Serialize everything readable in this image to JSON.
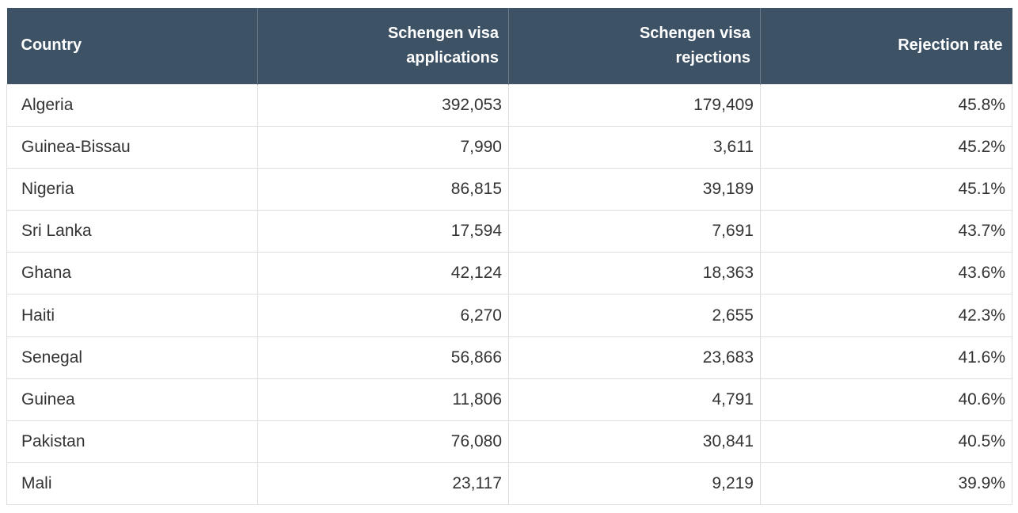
{
  "table": {
    "columns": [
      "Country",
      "Schengen visa applications",
      "Schengen visa rejections",
      "Rejection rate"
    ],
    "rows": [
      [
        "Algeria",
        "392,053",
        "179,409",
        "45.8%"
      ],
      [
        "Guinea-Bissau",
        "7,990",
        "3,611",
        "45.2%"
      ],
      [
        "Nigeria",
        "86,815",
        "39,189",
        "45.1%"
      ],
      [
        "Sri Lanka",
        "17,594",
        "7,691",
        "43.7%"
      ],
      [
        "Ghana",
        "42,124",
        "18,363",
        "43.6%"
      ],
      [
        "Haiti",
        "6,270",
        "2,655",
        "42.3%"
      ],
      [
        "Senegal",
        "56,866",
        "23,683",
        "41.6%"
      ],
      [
        "Guinea",
        "11,806",
        "4,791",
        "40.6%"
      ],
      [
        "Pakistan",
        "76,080",
        "30,841",
        "40.5%"
      ],
      [
        "Mali",
        "23,117",
        "9,219",
        "39.9%"
      ]
    ]
  }
}
